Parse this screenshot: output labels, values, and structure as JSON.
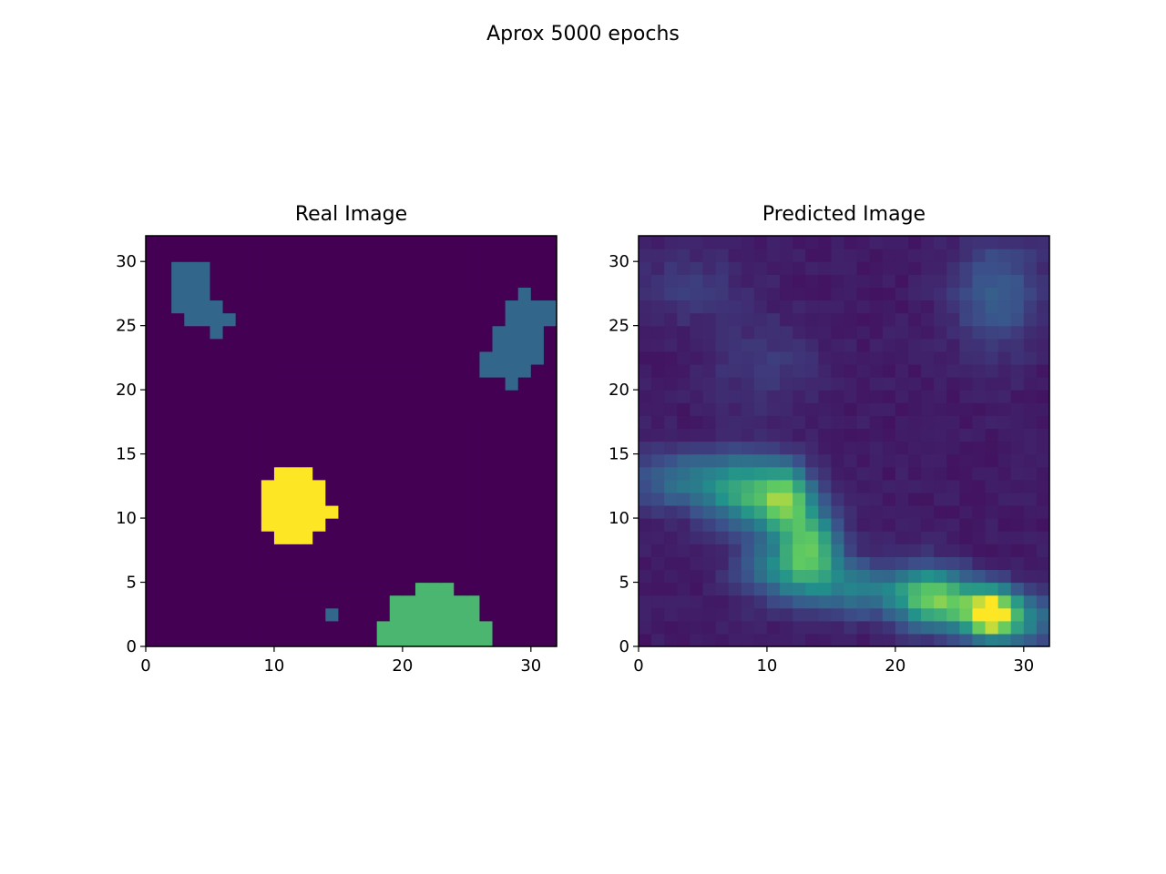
{
  "figure": {
    "title": "Aprox 5000 epochs"
  },
  "colormap": {
    "name": "viridis",
    "stops": [
      "#440154",
      "#3b528b",
      "#21918c",
      "#5ec962",
      "#fde725"
    ]
  },
  "chart_data": [
    {
      "type": "heatmap",
      "title": "Real Image",
      "xlabel": "",
      "ylabel": "",
      "xlim": [
        0,
        32
      ],
      "ylim": [
        0,
        32
      ],
      "xticks": [
        0,
        10,
        20,
        30
      ],
      "yticks": [
        0,
        5,
        10,
        15,
        20,
        25,
        30
      ],
      "grid": false,
      "vmin": 0,
      "vmax": 3,
      "background_value": 0,
      "regions": [
        {
          "value": 1,
          "rows": [
            [
              27,
              30,
              2,
              5
            ],
            [
              26,
              27,
              2,
              6
            ],
            [
              25,
              26,
              3,
              7
            ],
            [
              24,
              25,
              5,
              6
            ]
          ]
        },
        {
          "value": 1,
          "rows": [
            [
              27,
              28,
              29,
              30
            ],
            [
              26,
              27,
              28,
              32
            ],
            [
              25,
              26,
              28,
              32
            ],
            [
              24,
              25,
              27,
              31
            ],
            [
              23,
              24,
              27,
              31
            ],
            [
              22,
              23,
              26,
              31
            ],
            [
              21,
              22,
              26,
              30
            ],
            [
              20,
              21,
              28,
              29
            ]
          ]
        },
        {
          "value": 3,
          "rows": [
            [
              13,
              14,
              10,
              13
            ],
            [
              12,
              13,
              9,
              14
            ],
            [
              11,
              12,
              9,
              14
            ],
            [
              10,
              11,
              9,
              15
            ],
            [
              9,
              10,
              9,
              14
            ],
            [
              8,
              9,
              10,
              13
            ]
          ]
        },
        {
          "value": 1,
          "rows": [
            [
              2,
              3,
              14,
              15
            ]
          ]
        },
        {
          "value": 2,
          "rows": [
            [
              4,
              5,
              21,
              24
            ],
            [
              3,
              4,
              19,
              26
            ],
            [
              2,
              3,
              19,
              26
            ],
            [
              1,
              2,
              18,
              27
            ],
            [
              0,
              1,
              18,
              27
            ]
          ]
        }
      ]
    },
    {
      "type": "heatmap",
      "title": "Predicted Image",
      "xlabel": "",
      "ylabel": "",
      "xlim": [
        0,
        32
      ],
      "ylim": [
        0,
        32
      ],
      "xticks": [
        0,
        10,
        20,
        30
      ],
      "yticks": [
        0,
        5,
        10,
        15,
        20,
        25,
        30
      ],
      "grid": false,
      "vmin": 0,
      "vmax": 1,
      "base_level": 0.08,
      "hotspots": [
        {
          "x": 3.5,
          "y": 13.0,
          "sx": 3.0,
          "sy": 1.6,
          "a": 0.3
        },
        {
          "x": 8.5,
          "y": 12.0,
          "sx": 2.2,
          "sy": 2.0,
          "a": 0.45
        },
        {
          "x": 11.5,
          "y": 11.5,
          "sx": 1.5,
          "sy": 1.8,
          "a": 0.55
        },
        {
          "x": 13.5,
          "y": 8.0,
          "sx": 1.5,
          "sy": 2.0,
          "a": 0.5
        },
        {
          "x": 11.5,
          "y": 6.0,
          "sx": 2.5,
          "sy": 1.8,
          "a": 0.35
        },
        {
          "x": 17.0,
          "y": 4.5,
          "sx": 2.5,
          "sy": 1.5,
          "a": 0.3
        },
        {
          "x": 22.5,
          "y": 4.0,
          "sx": 2.0,
          "sy": 1.6,
          "a": 0.55
        },
        {
          "x": 27.5,
          "y": 2.5,
          "sx": 1.3,
          "sy": 1.3,
          "a": 0.85
        },
        {
          "x": 25.5,
          "y": 3.0,
          "sx": 2.5,
          "sy": 1.5,
          "a": 0.35
        },
        {
          "x": 30.5,
          "y": 2.0,
          "sx": 1.5,
          "sy": 1.5,
          "a": 0.3
        },
        {
          "x": 4.0,
          "y": 28.0,
          "sx": 3.0,
          "sy": 2.0,
          "a": 0.1
        },
        {
          "x": 28.0,
          "y": 27.5,
          "sx": 2.5,
          "sy": 3.0,
          "a": 0.22
        },
        {
          "x": 10.0,
          "y": 22.0,
          "sx": 3.0,
          "sy": 2.5,
          "a": 0.1
        }
      ]
    }
  ]
}
